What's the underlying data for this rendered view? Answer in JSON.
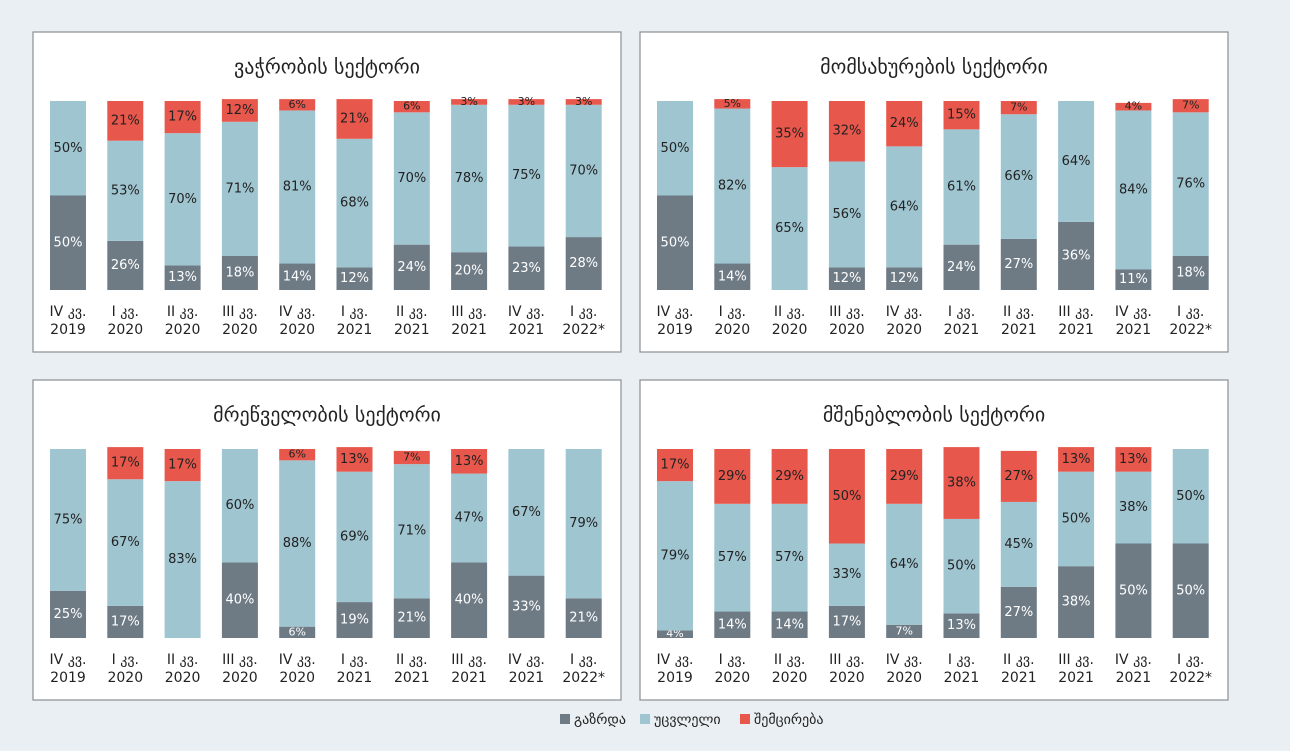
{
  "chart_data": [
    {
      "type": "bar",
      "stacked": true,
      "title": "ვაჭრობის სექტორი",
      "ylim": [
        0,
        100
      ],
      "categories": [
        [
          "IV კვ.",
          "2019"
        ],
        [
          "I კვ.",
          "2020"
        ],
        [
          "II კვ.",
          "2020"
        ],
        [
          "III კვ.",
          "2020"
        ],
        [
          "IV კვ.",
          "2020"
        ],
        [
          "I კვ.",
          "2021"
        ],
        [
          "II კვ.",
          "2021"
        ],
        [
          "III კვ.",
          "2021"
        ],
        [
          "IV კვ.",
          "2021"
        ],
        [
          "I კვ.",
          "2022*"
        ]
      ],
      "series": [
        {
          "name": "გაზრდა",
          "color": "#6e7b85",
          "values": [
            50,
            26,
            13,
            18,
            14,
            12,
            24,
            20,
            23,
            28
          ],
          "value_labels": [
            "50%",
            "26%",
            "13%",
            "18%",
            "14%",
            "12%",
            "24%",
            "20%",
            "23%",
            "28%"
          ]
        },
        {
          "name": "უცვლელი",
          "color": "#9fc5d1",
          "values": [
            50,
            53,
            70,
            71,
            81,
            68,
            70,
            78,
            75,
            70
          ],
          "value_labels": [
            "50%",
            "53%",
            "70%",
            "71%",
            "81%",
            "68%",
            "70%",
            "78%",
            "75%",
            "70%"
          ]
        },
        {
          "name": "შემცირება",
          "color": "#e8574b",
          "values": [
            0,
            21,
            17,
            12,
            6,
            21,
            6,
            3,
            3,
            3
          ],
          "value_labels": [
            null,
            "21%",
            "17%",
            "12%",
            "6%",
            "21%",
            "6%",
            "3%",
            "3%",
            "3%"
          ]
        }
      ]
    },
    {
      "type": "bar",
      "stacked": true,
      "title": "მომსახურების სექტორი",
      "ylim": [
        0,
        100
      ],
      "categories": [
        [
          "IV კვ.",
          "2019"
        ],
        [
          "I კვ.",
          "2020"
        ],
        [
          "II კვ.",
          "2020"
        ],
        [
          "III კვ.",
          "2020"
        ],
        [
          "IV კვ.",
          "2020"
        ],
        [
          "I კვ.",
          "2021"
        ],
        [
          "II კვ.",
          "2021"
        ],
        [
          "III კვ.",
          "2021"
        ],
        [
          "IV კვ.",
          "2021"
        ],
        [
          "I კვ.",
          "2022*"
        ]
      ],
      "series": [
        {
          "name": "გაზრდა",
          "color": "#6e7b85",
          "values": [
            50,
            14,
            0,
            12,
            12,
            24,
            27,
            36,
            11,
            18
          ],
          "value_labels": [
            "50%",
            "14%",
            null,
            "12%",
            "12%",
            "24%",
            "27%",
            "36%",
            "11%",
            "18%"
          ]
        },
        {
          "name": "უცვლელი",
          "color": "#9fc5d1",
          "values": [
            50,
            82,
            65,
            56,
            64,
            61,
            66,
            64,
            84,
            76
          ],
          "value_labels": [
            "50%",
            "82%",
            "65%",
            "56%",
            "64%",
            "61%",
            "66%",
            "64%",
            "84%",
            "76%"
          ]
        },
        {
          "name": "შემცირება",
          "color": "#e8574b",
          "values": [
            0,
            5,
            35,
            32,
            24,
            15,
            7,
            0,
            4,
            7
          ],
          "value_labels": [
            null,
            "5%",
            "35%",
            "32%",
            "24%",
            "15%",
            "7%",
            null,
            "4%",
            "7%"
          ]
        }
      ]
    },
    {
      "type": "bar",
      "stacked": true,
      "title": "მრეწველობის სექტორი",
      "ylim": [
        0,
        100
      ],
      "categories": [
        [
          "IV კვ.",
          "2019"
        ],
        [
          "I კვ.",
          "2020"
        ],
        [
          "II კვ.",
          "2020"
        ],
        [
          "III კვ.",
          "2020"
        ],
        [
          "IV კვ.",
          "2020"
        ],
        [
          "I კვ.",
          "2021"
        ],
        [
          "II კვ.",
          "2021"
        ],
        [
          "III კვ.",
          "2021"
        ],
        [
          "IV კვ.",
          "2021"
        ],
        [
          "I კვ.",
          "2022*"
        ]
      ],
      "series": [
        {
          "name": "გაზრდა",
          "color": "#6e7b85",
          "values": [
            25,
            17,
            0,
            40,
            6,
            19,
            21,
            40,
            33,
            21
          ],
          "value_labels": [
            "25%",
            "17%",
            null,
            "40%",
            "6%",
            "19%",
            "21%",
            "40%",
            "33%",
            "21%"
          ]
        },
        {
          "name": "უცვლელი",
          "color": "#9fc5d1",
          "values": [
            75,
            67,
            83,
            60,
            88,
            69,
            71,
            47,
            67,
            79
          ],
          "value_labels": [
            "75%",
            "67%",
            "83%",
            "60%",
            "88%",
            "69%",
            "71%",
            "47%",
            "67%",
            "79%"
          ]
        },
        {
          "name": "შემცირება",
          "color": "#e8574b",
          "values": [
            0,
            17,
            17,
            0,
            6,
            13,
            7,
            13,
            0,
            0
          ],
          "value_labels": [
            null,
            "17%",
            "17%",
            null,
            "6%",
            "13%",
            "7%",
            "13%",
            null,
            null
          ]
        }
      ]
    },
    {
      "type": "bar",
      "stacked": true,
      "title": "მშენებლობის სექტორი",
      "ylim": [
        0,
        100
      ],
      "categories": [
        [
          "IV კვ.",
          "2019"
        ],
        [
          "I კვ.",
          "2020"
        ],
        [
          "II კვ.",
          "2020"
        ],
        [
          "III კვ.",
          "2020"
        ],
        [
          "IV კვ.",
          "2020"
        ],
        [
          "I კვ.",
          "2021"
        ],
        [
          "II კვ.",
          "2021"
        ],
        [
          "III კვ.",
          "2021"
        ],
        [
          "IV კვ.",
          "2021"
        ],
        [
          "I კვ.",
          "2022*"
        ]
      ],
      "series": [
        {
          "name": "გაზრდა",
          "color": "#6e7b85",
          "values": [
            4,
            14,
            14,
            17,
            7,
            13,
            27,
            38,
            50,
            50
          ],
          "value_labels": [
            "4%",
            "14%",
            "14%",
            "17%",
            "7%",
            "13%",
            "27%",
            "38%",
            "50%",
            "50%"
          ]
        },
        {
          "name": "უცვლელი",
          "color": "#9fc5d1",
          "values": [
            79,
            57,
            57,
            33,
            64,
            50,
            45,
            50,
            38,
            50
          ],
          "value_labels": [
            "79%",
            "57%",
            "57%",
            "33%",
            "64%",
            "50%",
            "45%",
            "50%",
            "38%",
            "50%"
          ]
        },
        {
          "name": "შემცირება",
          "color": "#e8574b",
          "values": [
            17,
            29,
            29,
            50,
            29,
            38,
            27,
            13,
            13,
            0
          ],
          "value_labels": [
            "17%",
            "29%",
            "29%",
            "50%",
            "29%",
            "38%",
            "27%",
            "13%",
            "13%",
            null
          ]
        }
      ]
    }
  ]
}
